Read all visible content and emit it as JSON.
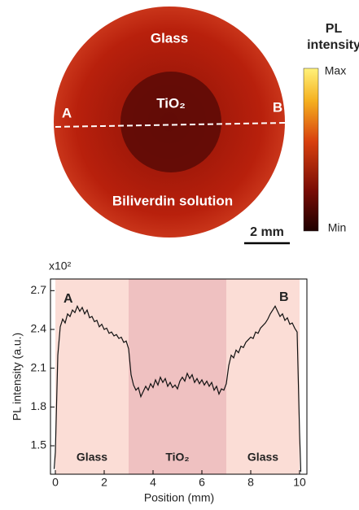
{
  "map": {
    "labels": {
      "glass": "Glass",
      "tio2": "TiO₂",
      "a": "A",
      "b": "B",
      "solution": "Biliverdin solution"
    },
    "colorbar": {
      "title_1": "PL",
      "title_2": "intensity",
      "max": "Max",
      "min": "Min"
    },
    "scale_bar": "2 mm"
  },
  "chart_data": {
    "type": "line",
    "x_label": "Position (mm)",
    "y_label": "PL intensity (a.u.)",
    "multiplier": "x10²",
    "annotations": [
      "A",
      "B"
    ],
    "regions": [
      {
        "label": "Glass",
        "from": 0,
        "to": 3,
        "color": "#fbddd6"
      },
      {
        "label": "TiO₂",
        "from": 3,
        "to": 7,
        "color": "#efc1c1"
      },
      {
        "label": "Glass",
        "from": 7,
        "to": 10,
        "color": "#fbddd6"
      }
    ],
    "line_color": "#111111",
    "x": [
      -0.05,
      0,
      0.1,
      0.2,
      0.3,
      0.4,
      0.5,
      0.6,
      0.7,
      0.8,
      0.9,
      1.0,
      1.1,
      1.2,
      1.3,
      1.4,
      1.5,
      1.6,
      1.7,
      1.8,
      1.9,
      2.0,
      2.1,
      2.2,
      2.3,
      2.4,
      2.5,
      2.6,
      2.7,
      2.8,
      2.9,
      3.0,
      3.1,
      3.2,
      3.3,
      3.4,
      3.5,
      3.6,
      3.7,
      3.8,
      3.9,
      4.0,
      4.1,
      4.2,
      4.3,
      4.4,
      4.5,
      4.6,
      4.7,
      4.8,
      4.9,
      5.0,
      5.1,
      5.2,
      5.3,
      5.4,
      5.5,
      5.6,
      5.7,
      5.8,
      5.9,
      6.0,
      6.1,
      6.2,
      6.3,
      6.4,
      6.5,
      6.6,
      6.7,
      6.8,
      6.9,
      7.0,
      7.1,
      7.2,
      7.3,
      7.4,
      7.5,
      7.6,
      7.7,
      7.8,
      7.9,
      8.0,
      8.1,
      8.2,
      8.3,
      8.4,
      8.5,
      8.6,
      8.7,
      8.8,
      8.9,
      9.0,
      9.1,
      9.2,
      9.3,
      9.4,
      9.5,
      9.6,
      9.7,
      9.8,
      9.9,
      10.0,
      10.05
    ],
    "values": [
      1.32,
      1.45,
      2.2,
      2.42,
      2.48,
      2.45,
      2.52,
      2.5,
      2.55,
      2.53,
      2.58,
      2.54,
      2.57,
      2.52,
      2.55,
      2.49,
      2.5,
      2.46,
      2.47,
      2.42,
      2.44,
      2.4,
      2.41,
      2.37,
      2.38,
      2.35,
      2.36,
      2.33,
      2.34,
      2.3,
      2.31,
      2.25,
      2.05,
      1.97,
      1.93,
      1.95,
      1.88,
      1.92,
      1.96,
      1.93,
      1.98,
      1.95,
      2.01,
      1.97,
      2.03,
      1.99,
      2.02,
      1.96,
      1.99,
      1.95,
      1.97,
      1.94,
      2.0,
      2.03,
      2.0,
      2.06,
      2.02,
      2.05,
      1.99,
      2.02,
      1.98,
      2.01,
      1.97,
      2.0,
      1.96,
      1.99,
      1.93,
      1.96,
      1.9,
      1.94,
      1.93,
      1.98,
      2.12,
      2.2,
      2.18,
      2.24,
      2.22,
      2.27,
      2.26,
      2.3,
      2.32,
      2.34,
      2.33,
      2.38,
      2.37,
      2.41,
      2.43,
      2.45,
      2.48,
      2.52,
      2.55,
      2.58,
      2.54,
      2.5,
      2.52,
      2.47,
      2.49,
      2.44,
      2.45,
      2.41,
      2.38,
      1.6,
      1.3
    ],
    "xlim": [
      -0.2,
      10.3
    ],
    "xticks": [
      0,
      2,
      4,
      6,
      8,
      10
    ],
    "ylim": [
      1.28,
      2.79
    ],
    "yticks": [
      1.5,
      1.8,
      2.1,
      2.4,
      2.7
    ]
  }
}
